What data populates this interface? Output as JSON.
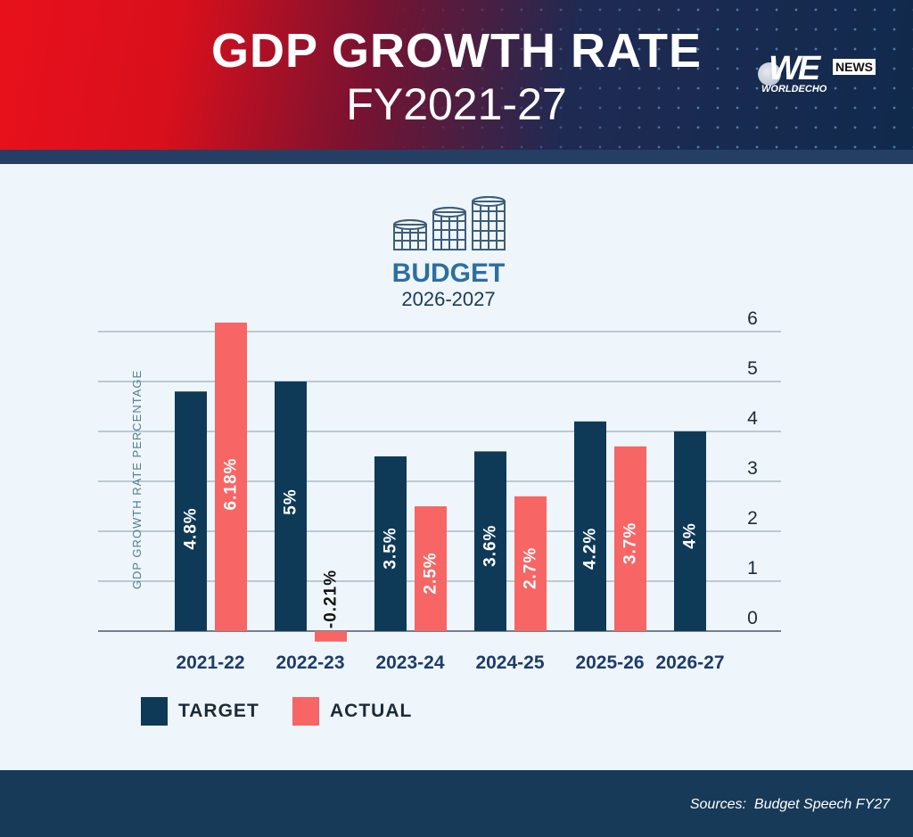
{
  "header": {
    "title": "GDP GROWTH RATE",
    "subtitle": "FY2021-27",
    "logo": {
      "mark": "WE",
      "badge": "NEWS",
      "name": "WORLDECHO"
    }
  },
  "budget": {
    "label": "BUDGET",
    "years": "2026-2027",
    "icon": "coin-stacks-icon"
  },
  "legend": [
    {
      "label": "TARGET",
      "color": "#0f3a57"
    },
    {
      "label": "ACTUAL",
      "color": "#f76565"
    }
  ],
  "footer": {
    "source": "Sources:  Budget Speech FY27"
  },
  "colors": {
    "target": "#0f3a57",
    "actual": "#f76565",
    "header_red": "#e8111b",
    "header_navy": "#102a4c",
    "footer": "#183a59"
  },
  "chart_data": {
    "type": "bar",
    "categories": [
      "2021-22",
      "2022-23",
      "2023-24",
      "2024-25",
      "2025-26",
      "2026-27"
    ],
    "series": [
      {
        "name": "TARGET",
        "values": [
          4.8,
          5,
          3.5,
          3.6,
          4.2,
          4
        ],
        "labels": [
          "4.8%",
          "5%",
          "3.5%",
          "3.6%",
          "4.2%",
          "4%"
        ]
      },
      {
        "name": "ACTUAL",
        "values": [
          6.18,
          -0.21,
          2.5,
          2.7,
          3.7,
          null
        ],
        "labels": [
          "6.18%",
          "-0.21%",
          "2.5%",
          "2.7%",
          "3.7%",
          null
        ]
      }
    ],
    "ylabel": "GDP GROWTH RATE PERCENTAGE",
    "ylim": [
      0,
      6
    ],
    "yticks": [
      "0",
      "1",
      "2",
      "3",
      "4",
      "5",
      "6"
    ],
    "y_axis_position": "right",
    "grid": true,
    "legend_position": "bottom-left"
  }
}
